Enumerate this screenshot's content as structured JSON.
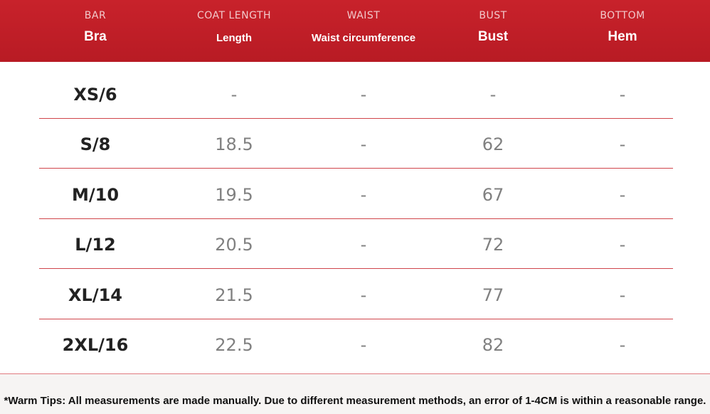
{
  "header": {
    "columns": [
      {
        "code": "BAR",
        "label": "Bra"
      },
      {
        "code": "COAT LENGTH",
        "label": "Length"
      },
      {
        "code": "WAIST",
        "label": "Waist circumference"
      },
      {
        "code": "BUST",
        "label": "Bust"
      },
      {
        "code": "BOTTOM",
        "label": "Hem"
      }
    ]
  },
  "table": {
    "rows": [
      [
        "XS/6",
        "-",
        "-",
        "-",
        "-"
      ],
      [
        "S/8",
        "18.5",
        "-",
        "62",
        "-"
      ],
      [
        "M/10",
        "19.5",
        "-",
        "67",
        "-"
      ],
      [
        "L/12",
        "20.5",
        "-",
        "72",
        "-"
      ],
      [
        "XL/14",
        "21.5",
        "-",
        "77",
        "-"
      ],
      [
        "2XL/16",
        "22.5",
        "-",
        "82",
        "-"
      ]
    ]
  },
  "footer": {
    "tip": "*Warm Tips: All measurements are made manually. Due to different measurement methods, an error of 1-4CM is within a reasonable range."
  }
}
